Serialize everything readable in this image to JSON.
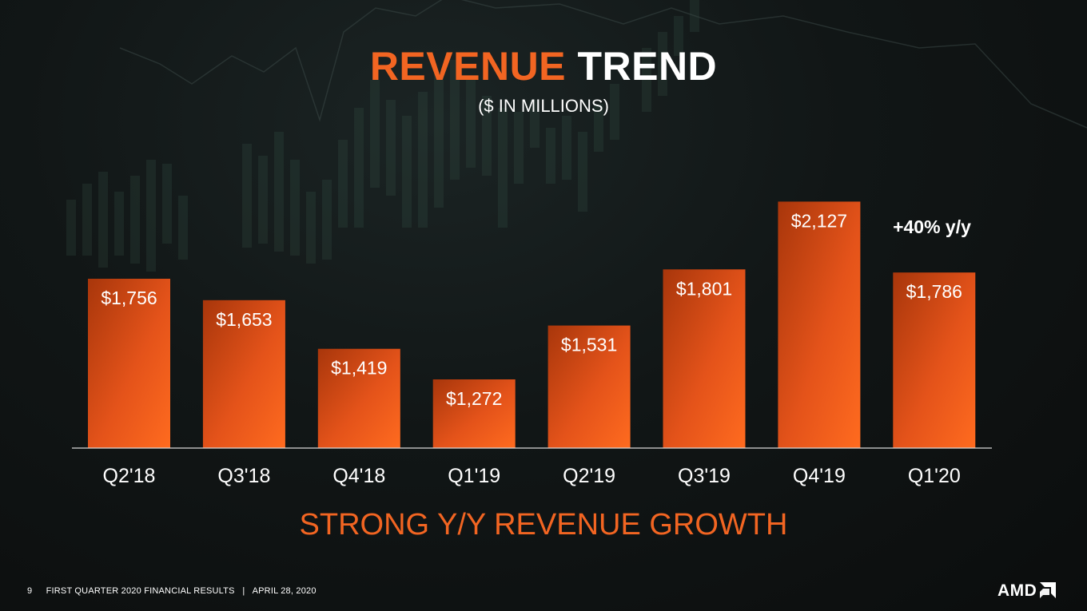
{
  "title": {
    "part1": "REVENUE",
    "part2": "TREND"
  },
  "subtitle": "($ IN MILLIONS)",
  "annotation": "+40% y/y",
  "tagline": "STRONG Y/Y REVENUE GROWTH",
  "footer": {
    "page_number": "9",
    "text": "FIRST QUARTER 2020 FINANCIAL RESULTS   |   APRIL 28, 2020"
  },
  "logo_text": "AMD",
  "colors": {
    "accent": "#f26522",
    "bar_top": "#b83a0c",
    "bar_bottom": "#ff6a1f",
    "text": "#ffffff"
  },
  "chart_data": {
    "type": "bar",
    "categories": [
      "Q2'18",
      "Q3'18",
      "Q4'18",
      "Q1'19",
      "Q2'19",
      "Q3'19",
      "Q4'19",
      "Q1'20"
    ],
    "values": [
      1756,
      1653,
      1419,
      1272,
      1531,
      1801,
      2127,
      1786
    ],
    "data_labels": [
      "$1,756",
      "$1,653",
      "$1,419",
      "$1,272",
      "$1,531",
      "$1,801",
      "$2,127",
      "$1,786"
    ],
    "title": "REVENUE TREND",
    "ylabel": "",
    "xlabel": "",
    "ylim": [
      800,
      2200
    ],
    "grid": false,
    "legend": "none"
  }
}
